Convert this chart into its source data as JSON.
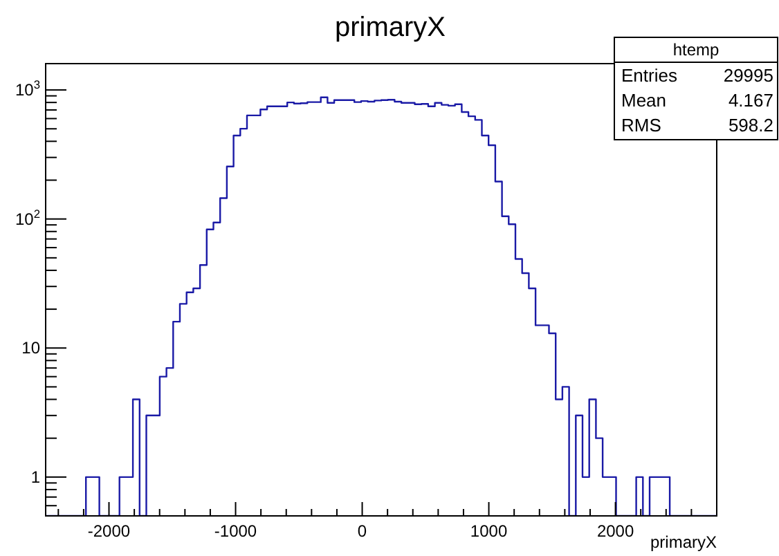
{
  "chart_data": {
    "type": "histogram",
    "title": "primaryX",
    "xlabel": "primaryX",
    "color": "#1a1aa6",
    "log": "y",
    "grid": false,
    "bins": [
      -2500,
      -2447,
      -2394,
      -2341,
      -2288,
      -2235,
      -2182,
      -2129,
      -2076,
      -2023,
      -1970,
      -1917,
      -1864,
      -1811,
      -1758,
      -1705,
      -1652,
      -1599,
      -1546,
      -1493,
      -1440,
      -1387,
      -1334,
      -1281,
      -1228,
      -1175,
      -1122,
      -1069,
      -1016,
      -963,
      -910,
      -857,
      -804,
      -751,
      -698,
      -645,
      -592,
      -539,
      -486,
      -433,
      -380,
      -327,
      -274,
      -221,
      -168,
      -115,
      -62,
      -9,
      44,
      97,
      150,
      203,
      256,
      309,
      362,
      415,
      468,
      521,
      574,
      627,
      680,
      733,
      786,
      839,
      892,
      945,
      998,
      1051,
      1104,
      1157,
      1210,
      1263,
      1316,
      1369,
      1422,
      1475,
      1528,
      1581,
      1634,
      1687,
      1740,
      1793,
      1846,
      1899,
      1952,
      2005,
      2058,
      2111,
      2164,
      2217,
      2270,
      2323,
      2376,
      2429,
      2482,
      2535,
      2588,
      2641,
      2694,
      2747,
      2800
    ],
    "values": [
      null,
      null,
      null,
      null,
      null,
      null,
      1,
      1,
      null,
      null,
      null,
      1,
      1,
      4,
      null,
      3,
      3,
      6,
      7,
      16,
      22,
      27,
      29,
      44,
      83,
      94,
      145,
      255,
      443,
      501,
      635,
      635,
      706,
      747,
      747,
      747,
      800,
      785,
      790,
      805,
      805,
      877,
      795,
      834,
      834,
      834,
      805,
      820,
      811,
      828,
      834,
      840,
      811,
      795,
      795,
      775,
      780,
      747,
      795,
      767,
      755,
      775,
      675,
      625,
      586,
      443,
      373,
      195,
      105,
      91,
      49,
      38,
      29,
      15,
      15,
      13,
      4,
      5,
      null,
      3,
      1,
      4,
      2,
      1,
      1,
      null,
      null,
      null,
      1,
      null,
      1,
      1,
      1,
      null,
      null,
      null,
      null,
      null,
      null,
      null
    ],
    "xlim": [
      -2500,
      2800
    ],
    "xticks": [
      {
        "value": -2400,
        "label": null
      },
      {
        "value": -2200,
        "label": null
      },
      -2000,
      {
        "value": -1800,
        "label": null
      },
      {
        "value": -1600,
        "label": null
      },
      {
        "value": -1400,
        "label": null
      },
      {
        "value": -1200,
        "label": null
      },
      -1000,
      {
        "value": -800,
        "label": null
      },
      {
        "value": -600,
        "label": null
      },
      {
        "value": -400,
        "label": null
      },
      {
        "value": -200,
        "label": null
      },
      0,
      {
        "value": 200,
        "label": null
      },
      {
        "value": 400,
        "label": null
      },
      {
        "value": 600,
        "label": null
      },
      {
        "value": 800,
        "label": null
      },
      1000,
      {
        "value": 1200,
        "label": null
      },
      {
        "value": 1400,
        "label": null
      },
      {
        "value": 1600,
        "label": null
      },
      {
        "value": 1800,
        "label": null
      },
      2000,
      {
        "value": 2200,
        "label": null
      },
      {
        "value": 2400,
        "label": null
      },
      {
        "value": 2600,
        "label": null
      }
    ],
    "ylim": [
      0.5,
      1600
    ],
    "yticks": [
      {
        "value": 0.6,
        "label": null
      },
      {
        "value": 0.7,
        "label": null
      },
      {
        "value": 0.8,
        "label": null
      },
      {
        "value": 0.9,
        "label": null
      },
      1,
      {
        "value": 2,
        "label": null
      },
      {
        "value": 3,
        "label": null
      },
      {
        "value": 4,
        "label": null
      },
      {
        "value": 5,
        "label": null
      },
      {
        "value": 6,
        "label": null
      },
      {
        "value": 7,
        "label": null
      },
      {
        "value": 8,
        "label": null
      },
      {
        "value": 9,
        "label": null
      },
      10,
      {
        "value": 20,
        "label": null
      },
      {
        "value": 30,
        "label": null
      },
      {
        "value": 40,
        "label": null
      },
      {
        "value": 50,
        "label": null
      },
      {
        "value": 60,
        "label": null
      },
      {
        "value": 70,
        "label": null
      },
      {
        "value": 80,
        "label": null
      },
      {
        "value": 90,
        "label": null
      },
      {
        "value": 100,
        "label": "10$^{2}$"
      },
      {
        "value": 200,
        "label": null
      },
      {
        "value": 300,
        "label": null
      },
      {
        "value": 400,
        "label": null
      },
      {
        "value": 500,
        "label": null
      },
      {
        "value": 600,
        "label": null
      },
      {
        "value": 700,
        "label": null
      },
      {
        "value": 800,
        "label": null
      },
      {
        "value": 900,
        "label": null
      },
      {
        "value": 1000,
        "label": "10$^{3}$"
      }
    ],
    "annotations": [
      "htemp",
      "Entries",
      "29995",
      "Mean",
      "4.167",
      "RMS",
      "598.2"
    ]
  }
}
